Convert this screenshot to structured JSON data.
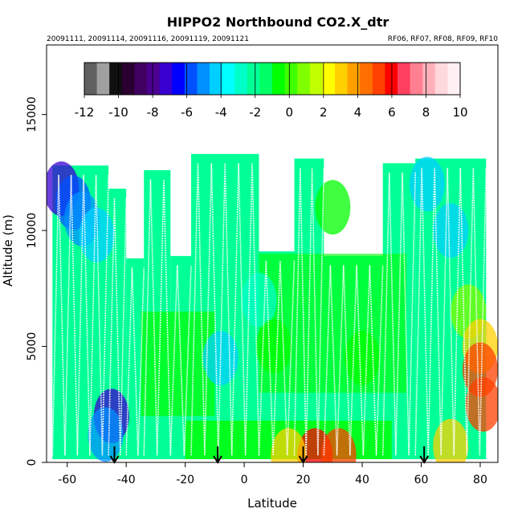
{
  "chart_data": {
    "type": "heatmap",
    "title": "HIPPO2 Northbound CO2.X_dtr",
    "subtitle_left": "20091111, 20091114, 20091116, 20091119, 20091121",
    "subtitle_right": "RF06, RF07, RF08, RF09, RF10",
    "xlabel": "Latitude",
    "ylabel": "Altitude (m)",
    "xlim": [
      -67,
      86
    ],
    "ylim": [
      0,
      18000
    ],
    "x_ticks": [
      -60,
      -40,
      -20,
      0,
      20,
      40,
      60,
      80
    ],
    "y_ticks": [
      0,
      5000,
      10000,
      15000
    ],
    "colorbar": {
      "range": [
        -12,
        10
      ],
      "ticks": [
        -12,
        -10,
        -8,
        -6,
        -4,
        -2,
        0,
        2,
        4,
        6,
        8,
        10
      ],
      "colors": [
        "#606060",
        "#a0a0a0",
        "#101010",
        "#2a0030",
        "#400060",
        "#4b0090",
        "#3a00d0",
        "#0000ff",
        "#0050ff",
        "#0090ff",
        "#00d0ff",
        "#00ffff",
        "#00ffc8",
        "#00ff96",
        "#00ff64",
        "#00ff00",
        "#40ff00",
        "#80ff00",
        "#c0ff00",
        "#ffff00",
        "#ffd000",
        "#ffa000",
        "#ff7000",
        "#ff4000",
        "#ff0000",
        "#ff4060",
        "#ff8090",
        "#ffb0bb",
        "#ffd8dd",
        "#fff0f2"
      ]
    },
    "profiles_top": [
      {
        "lat": [
          -65,
          -46
        ],
        "alt_top": 12800
      },
      {
        "lat": [
          -46,
          -40
        ],
        "alt_top": 11800
      },
      {
        "lat": [
          -40,
          -34
        ],
        "alt_top": 8800
      },
      {
        "lat": [
          -34,
          -25
        ],
        "alt_top": 12600
      },
      {
        "lat": [
          -25,
          -18
        ],
        "alt_top": 8900
      },
      {
        "lat": [
          -18,
          5
        ],
        "alt_top": 13300
      },
      {
        "lat": [
          5,
          17
        ],
        "alt_top": 9100
      },
      {
        "lat": [
          17,
          27
        ],
        "alt_top": 13100
      },
      {
        "lat": [
          27,
          47
        ],
        "alt_top": 8900
      },
      {
        "lat": [
          47,
          58
        ],
        "alt_top": 12900
      },
      {
        "lat": [
          58,
          82
        ],
        "alt_top": 13100
      }
    ],
    "cells": [
      {
        "lat": -62,
        "alt": 11800,
        "dco2": -7
      },
      {
        "lat": -58,
        "alt": 11200,
        "dco2": -6
      },
      {
        "lat": -55,
        "alt": 10500,
        "dco2": -5
      },
      {
        "lat": -50,
        "alt": 9800,
        "dco2": -4
      },
      {
        "lat": -45,
        "alt": 2000,
        "dco2": -7
      },
      {
        "lat": -47,
        "alt": 1200,
        "dco2": -5
      },
      {
        "lat": -8,
        "alt": 4500,
        "dco2": -4
      },
      {
        "lat": 5,
        "alt": 7000,
        "dco2": -3
      },
      {
        "lat": 10,
        "alt": 5000,
        "dco2": -1
      },
      {
        "lat": 30,
        "alt": 11000,
        "dco2": -1
      },
      {
        "lat": 40,
        "alt": 4500,
        "dco2": -1
      },
      {
        "lat": 62,
        "alt": 12000,
        "dco2": -4
      },
      {
        "lat": 70,
        "alt": 10000,
        "dco2": -4
      },
      {
        "lat": 76,
        "alt": 6500,
        "dco2": 1
      },
      {
        "lat": 80,
        "alt": 5000,
        "dco2": 3
      },
      {
        "lat": 81,
        "alt": 2500,
        "dco2": 5
      },
      {
        "lat": 80,
        "alt": 4000,
        "dco2": 5
      },
      {
        "lat": 70,
        "alt": 700,
        "dco2": 3
      },
      {
        "lat": 24,
        "alt": 300,
        "dco2": 6
      },
      {
        "lat": 32,
        "alt": 300,
        "dco2": 5
      },
      {
        "lat": 15,
        "alt": 300,
        "dco2": 3
      }
    ],
    "arrows_lat": [
      -44,
      -9,
      20,
      61
    ]
  }
}
